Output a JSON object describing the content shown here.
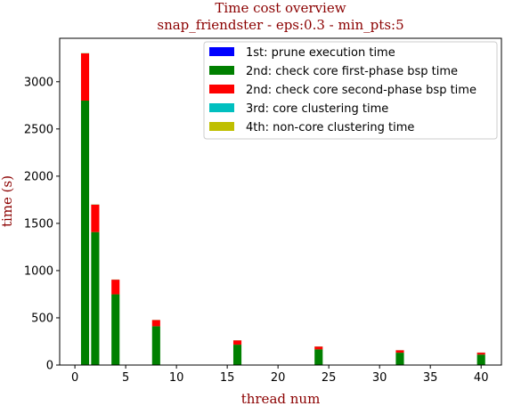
{
  "chart_data": {
    "type": "bar",
    "stacked": true,
    "title": "Time cost overview",
    "subtitle": "snap_friendster - eps:0.3 - min_pts:5",
    "xlabel": "thread num",
    "ylabel": "time (s)",
    "xlim": [
      -1.5,
      42
    ],
    "ylim": [
      0,
      3460
    ],
    "xticks": [
      0,
      5,
      10,
      15,
      20,
      25,
      30,
      35,
      40
    ],
    "yticks": [
      0,
      500,
      1000,
      1500,
      2000,
      2500,
      3000
    ],
    "grid": false,
    "legend_position": "top-right",
    "bar_width": 0.8,
    "x": [
      1,
      2,
      4,
      8,
      16,
      24,
      32,
      40
    ],
    "series": [
      {
        "name": "1st: prune execution time",
        "color": "#0000ff",
        "values": [
          5,
          3,
          2,
          1,
          1,
          1,
          1,
          1
        ]
      },
      {
        "name": "2nd: check core first-phase bsp time",
        "color": "#008000",
        "values": [
          2795,
          1405,
          747,
          410,
          215,
          165,
          130,
          110
        ]
      },
      {
        "name": "2nd: check core second-phase bsp time",
        "color": "#ff0000",
        "values": [
          500,
          290,
          155,
          65,
          45,
          30,
          25,
          20
        ]
      },
      {
        "name": "3rd: core clustering time",
        "color": "#00bfbf",
        "values": [
          2,
          2,
          1,
          1,
          1,
          1,
          1,
          1
        ]
      },
      {
        "name": "4th: non-core clustering time",
        "color": "#bfbf00",
        "values": [
          2,
          2,
          1,
          1,
          1,
          1,
          1,
          1
        ]
      }
    ]
  }
}
